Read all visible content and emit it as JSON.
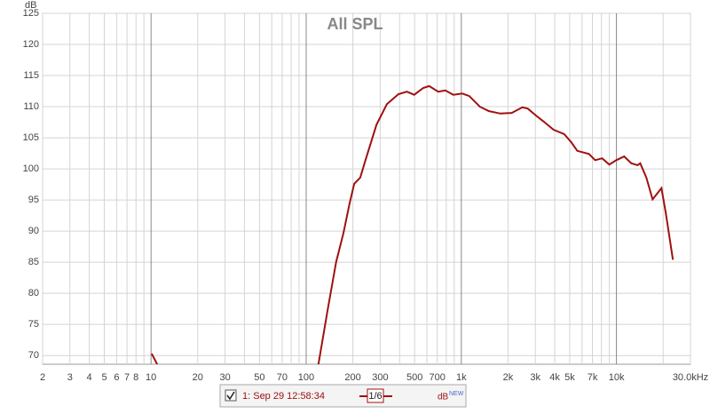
{
  "chart_data": {
    "type": "line",
    "title": "All SPL",
    "y_unit": "dB",
    "log_x": true,
    "grid": true,
    "xlim": [
      2,
      30000
    ],
    "ylim": [
      68.6,
      125
    ],
    "yticks": [
      70,
      75,
      80,
      85,
      90,
      95,
      100,
      105,
      110,
      115,
      120,
      125
    ],
    "xticks": [
      2,
      3,
      4,
      5,
      6,
      7,
      8,
      10,
      20,
      30,
      50,
      70,
      100,
      200,
      300,
      500,
      700,
      {
        "value": 1000,
        "label": "1k"
      },
      {
        "value": 2000,
        "label": "2k"
      },
      {
        "value": 3000,
        "label": "3k"
      },
      {
        "value": 4000,
        "label": "4k"
      },
      {
        "value": 5000,
        "label": "5k"
      },
      {
        "value": 7000,
        "label": "7k"
      },
      {
        "value": 10000,
        "label": "10k"
      },
      {
        "value": 30000,
        "label": "30.0kHz"
      }
    ],
    "xgrid_minor": [
      9,
      40,
      60,
      80,
      90,
      400,
      600,
      800,
      900,
      6000,
      8000,
      9000,
      20000
    ],
    "x": [
      10.1,
      10.96,
      100,
      120,
      137,
      156,
      174,
      190,
      204,
      223,
      241,
      284,
      331,
      393,
      446,
      497,
      568,
      621,
      709,
      788,
      888,
      1013,
      1125,
      1317,
      1502,
      1781,
      2112,
      2474,
      2680,
      3020,
      3399,
      3930,
      4601,
      5107,
      5596,
      6646,
      7291,
      8094,
      8994,
      9979,
      11220,
      12470,
      13680,
      14230,
      15590,
      17100,
      18260,
      19500,
      20800,
      23100
    ],
    "series": [
      {
        "name": "1: Sep 29 12:58:34",
        "color": "#a01010",
        "values": [
          70.3,
          68.6,
          null,
          68.6,
          77.1,
          85,
          89.7,
          94.3,
          97.6,
          98.6,
          101.4,
          107.1,
          110.4,
          112,
          112.4,
          111.9,
          113,
          113.3,
          112.4,
          112.6,
          111.9,
          112.1,
          111.7,
          110,
          109.3,
          108.9,
          109,
          109.9,
          109.7,
          108.6,
          107.6,
          106.3,
          105.6,
          104.3,
          102.9,
          102.4,
          101.4,
          101.7,
          100.7,
          101.4,
          102,
          100.9,
          100.6,
          100.9,
          98.6,
          95.1,
          96,
          96.9,
          92.9,
          85.4
        ]
      }
    ],
    "smoothing": "1/6",
    "legend_unit": "dB",
    "legend_unit_badge": "NEW"
  }
}
